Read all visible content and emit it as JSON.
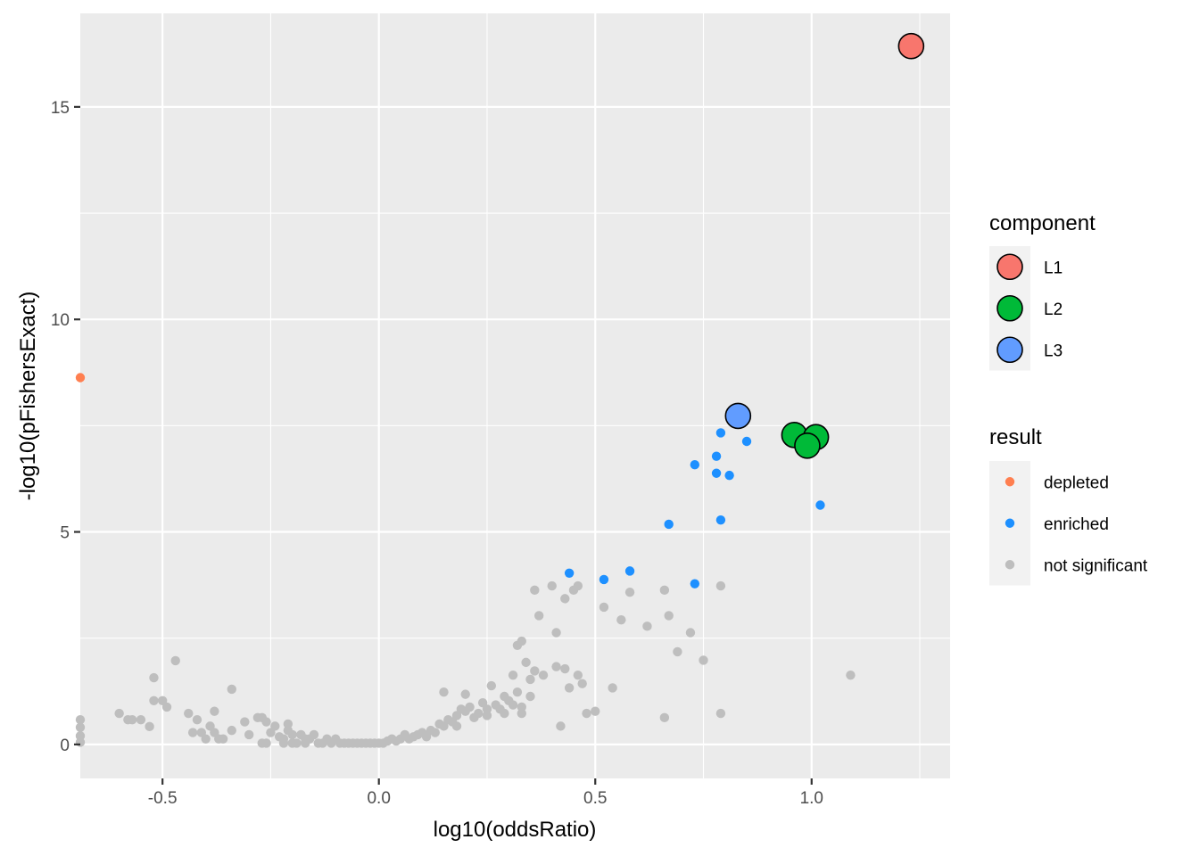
{
  "chart_data": {
    "type": "scatter",
    "title": "",
    "xlabel": "log10(oddsRatio)",
    "ylabel": "-log10(pFishersExact)",
    "xlim": [
      -0.69,
      1.32
    ],
    "ylim": [
      -0.8,
      17.2
    ],
    "x_ticks": [
      -0.5,
      0.0,
      0.5,
      1.0
    ],
    "x_tick_labels": [
      "-0.5",
      "0.0",
      "0.5",
      "1.0"
    ],
    "y_ticks": [
      0,
      5,
      10,
      15
    ],
    "y_tick_labels": [
      "0",
      "5",
      "10",
      "15"
    ],
    "grid": true,
    "legend_position": "right",
    "legends": [
      {
        "title": "component",
        "entries": [
          {
            "label": "L1",
            "color": "#F8766D"
          },
          {
            "label": "L2",
            "color": "#00BA38"
          },
          {
            "label": "L3",
            "color": "#619CFF"
          }
        ]
      },
      {
        "title": "result",
        "entries": [
          {
            "label": "depleted",
            "color": "#FF7F50"
          },
          {
            "label": "enriched",
            "color": "#1E90FF"
          },
          {
            "label": "not significant",
            "color": "#BEBEBE"
          }
        ]
      }
    ],
    "series": [
      {
        "name": "not significant",
        "color": "#BEBEBE",
        "points": [
          [
            -0.69,
            0.58
          ],
          [
            -0.69,
            0.4
          ],
          [
            -0.69,
            0.2
          ],
          [
            -0.69,
            0.05
          ],
          [
            -0.6,
            0.73
          ],
          [
            -0.58,
            0.58
          ],
          [
            -0.57,
            0.58
          ],
          [
            -0.55,
            0.58
          ],
          [
            -0.53,
            0.42
          ],
          [
            -0.52,
            1.57
          ],
          [
            -0.52,
            1.03
          ],
          [
            -0.5,
            1.03
          ],
          [
            -0.49,
            0.88
          ],
          [
            -0.47,
            1.97
          ],
          [
            -0.44,
            0.73
          ],
          [
            -0.43,
            0.28
          ],
          [
            -0.42,
            0.58
          ],
          [
            -0.41,
            0.28
          ],
          [
            -0.4,
            0.13
          ],
          [
            -0.39,
            0.43
          ],
          [
            -0.38,
            0.28
          ],
          [
            -0.38,
            0.78
          ],
          [
            -0.37,
            0.13
          ],
          [
            -0.36,
            0.13
          ],
          [
            -0.34,
            1.3
          ],
          [
            -0.34,
            0.33
          ],
          [
            -0.31,
            0.53
          ],
          [
            -0.3,
            0.23
          ],
          [
            -0.28,
            0.63
          ],
          [
            -0.27,
            0.03
          ],
          [
            -0.27,
            0.63
          ],
          [
            -0.26,
            0.53
          ],
          [
            -0.26,
            0.03
          ],
          [
            -0.25,
            0.28
          ],
          [
            -0.24,
            0.43
          ],
          [
            -0.23,
            0.18
          ],
          [
            -0.22,
            0.03
          ],
          [
            -0.22,
            0.13
          ],
          [
            -0.21,
            0.48
          ],
          [
            -0.21,
            0.33
          ],
          [
            -0.2,
            0.23
          ],
          [
            -0.2,
            0.03
          ],
          [
            -0.19,
            0.03
          ],
          [
            -0.18,
            0.23
          ],
          [
            -0.17,
            0.13
          ],
          [
            -0.17,
            0.03
          ],
          [
            -0.16,
            0.13
          ],
          [
            -0.15,
            0.23
          ],
          [
            -0.14,
            0.03
          ],
          [
            -0.13,
            0.03
          ],
          [
            -0.12,
            0.13
          ],
          [
            -0.11,
            0.03
          ],
          [
            -0.1,
            0.13
          ],
          [
            -0.09,
            0.03
          ],
          [
            -0.08,
            0.03
          ],
          [
            -0.07,
            0.03
          ],
          [
            -0.06,
            0.03
          ],
          [
            -0.05,
            0.03
          ],
          [
            -0.04,
            0.03
          ],
          [
            -0.03,
            0.03
          ],
          [
            -0.02,
            0.03
          ],
          [
            -0.01,
            0.03
          ],
          [
            0.0,
            0.03
          ],
          [
            0.01,
            0.03
          ],
          [
            0.02,
            0.08
          ],
          [
            0.03,
            0.13
          ],
          [
            0.04,
            0.08
          ],
          [
            0.05,
            0.13
          ],
          [
            0.06,
            0.23
          ],
          [
            0.07,
            0.13
          ],
          [
            0.08,
            0.18
          ],
          [
            0.09,
            0.23
          ],
          [
            0.1,
            0.28
          ],
          [
            0.11,
            0.18
          ],
          [
            0.12,
            0.33
          ],
          [
            0.13,
            0.28
          ],
          [
            0.14,
            0.48
          ],
          [
            0.15,
            0.43
          ],
          [
            0.16,
            0.58
          ],
          [
            0.17,
            0.53
          ],
          [
            0.18,
            0.68
          ],
          [
            0.19,
            0.83
          ],
          [
            0.2,
            0.78
          ],
          [
            0.21,
            0.88
          ],
          [
            0.22,
            0.63
          ],
          [
            0.23,
            0.73
          ],
          [
            0.24,
            0.98
          ],
          [
            0.25,
            0.83
          ],
          [
            0.26,
            1.38
          ],
          [
            0.27,
            0.93
          ],
          [
            0.28,
            0.83
          ],
          [
            0.29,
            1.13
          ],
          [
            0.3,
            1.03
          ],
          [
            0.31,
            0.93
          ],
          [
            0.32,
            1.23
          ],
          [
            0.33,
            0.88
          ],
          [
            0.35,
            1.53
          ],
          [
            0.36,
            1.73
          ],
          [
            0.38,
            1.63
          ],
          [
            0.4,
            3.73
          ],
          [
            0.41,
            1.83
          ],
          [
            0.42,
            0.43
          ],
          [
            0.43,
            3.43
          ],
          [
            0.44,
            1.33
          ],
          [
            0.45,
            3.63
          ],
          [
            0.46,
            1.63
          ],
          [
            0.47,
            1.43
          ],
          [
            0.48,
            0.73
          ],
          [
            0.5,
            0.78
          ],
          [
            0.52,
            3.23
          ],
          [
            0.54,
            1.33
          ],
          [
            0.56,
            2.93
          ],
          [
            0.58,
            3.58
          ],
          [
            0.62,
            2.78
          ],
          [
            0.66,
            3.63
          ],
          [
            0.67,
            3.03
          ],
          [
            0.69,
            2.18
          ],
          [
            0.72,
            2.63
          ],
          [
            0.75,
            1.98
          ],
          [
            0.79,
            3.73
          ],
          [
            0.66,
            0.63
          ],
          [
            0.79,
            0.73
          ],
          [
            0.32,
            2.33
          ],
          [
            0.33,
            2.43
          ],
          [
            0.34,
            1.93
          ],
          [
            0.36,
            3.63
          ],
          [
            0.37,
            3.03
          ],
          [
            0.41,
            2.63
          ],
          [
            0.43,
            1.78
          ],
          [
            0.46,
            3.73
          ],
          [
            0.29,
            0.73
          ],
          [
            0.31,
            1.63
          ],
          [
            0.33,
            0.73
          ],
          [
            0.35,
            1.13
          ],
          [
            0.2,
            1.18
          ],
          [
            0.25,
            0.68
          ],
          [
            0.15,
            1.23
          ],
          [
            0.18,
            0.43
          ],
          [
            1.09,
            1.63
          ]
        ]
      },
      {
        "name": "depleted",
        "color": "#FF7F50",
        "points": [
          [
            -0.69,
            8.63
          ]
        ]
      },
      {
        "name": "enriched",
        "color": "#1E90FF",
        "points": [
          [
            0.44,
            4.03
          ],
          [
            0.52,
            3.88
          ],
          [
            0.58,
            4.08
          ],
          [
            0.67,
            5.18
          ],
          [
            0.73,
            6.58
          ],
          [
            0.73,
            3.78
          ],
          [
            0.78,
            6.38
          ],
          [
            0.78,
            6.78
          ],
          [
            0.79,
            5.28
          ],
          [
            0.79,
            7.33
          ],
          [
            0.81,
            6.33
          ],
          [
            0.85,
            7.13
          ],
          [
            1.02,
            5.63
          ]
        ]
      },
      {
        "name": "L1",
        "color": "#F8766D",
        "highlight": true,
        "points": [
          [
            1.23,
            16.43
          ]
        ]
      },
      {
        "name": "L2",
        "color": "#00BA38",
        "highlight": true,
        "points": [
          [
            0.96,
            7.28
          ],
          [
            1.01,
            7.23
          ],
          [
            0.99,
            7.03
          ]
        ]
      },
      {
        "name": "L3",
        "color": "#619CFF",
        "highlight": true,
        "points": [
          [
            0.83,
            7.73
          ]
        ]
      }
    ]
  }
}
